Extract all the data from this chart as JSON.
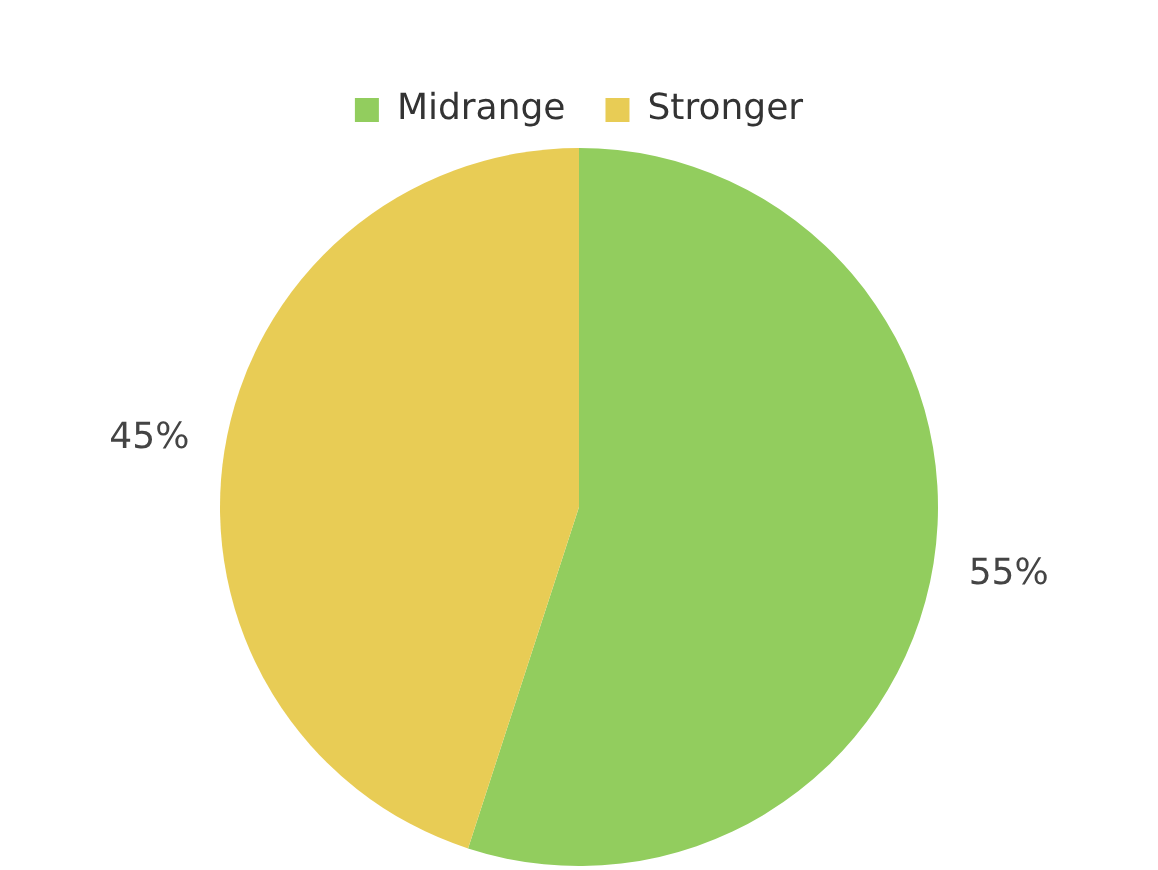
{
  "chart_data": {
    "type": "pie",
    "categories": [
      "Midrange",
      "Stronger"
    ],
    "values": [
      55,
      45
    ],
    "colors": [
      "#92cd5e",
      "#e8cc55"
    ],
    "value_labels": [
      "55%",
      "45%"
    ],
    "legend": "top"
  }
}
